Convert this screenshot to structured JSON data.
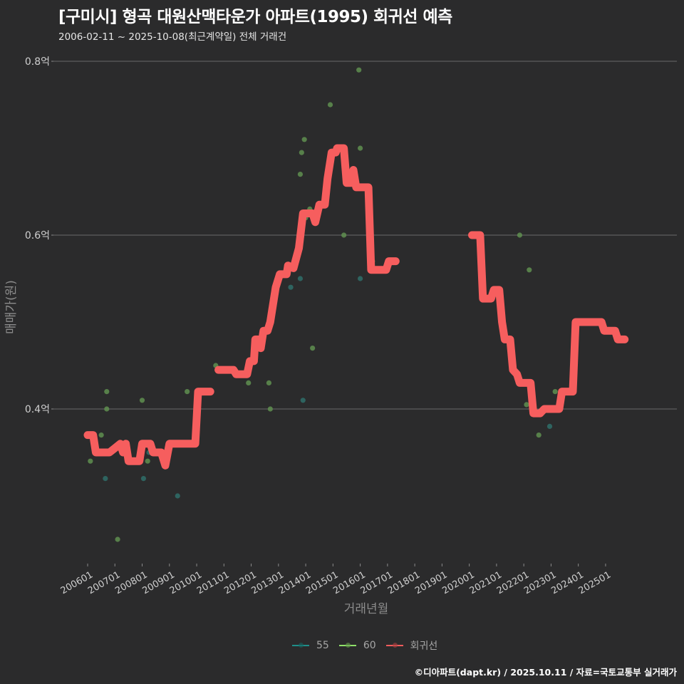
{
  "header": {
    "title": "[구미시] 형곡 대원산맥타운가 아파트(1995) 회귀선 예측",
    "subtitle": "2006-02-11 ~ 2025-10-08(최근계약일) 전체 거래건"
  },
  "caption": "©디아파트(dapt.kr) / 2025.10.11 / 자료=국토교통부 실거래가",
  "legend": {
    "items": [
      {
        "label": "55",
        "color": "#1f8f8a"
      },
      {
        "label": "60",
        "color": "#8fe06a"
      },
      {
        "label": "회귀선",
        "color": "#f25c5c"
      }
    ]
  },
  "colors": {
    "background": "#2b2b2c",
    "grid": "#6a6a6a",
    "series_55": "#2f6e6a",
    "series_60": "#5f8f50",
    "regression": "#f65e5e"
  },
  "chart_data": {
    "type": "scatter",
    "title": "[구미시] 형곡 대원산맥타운가 아파트(1995) 회귀선 예측",
    "subtitle": "2006-02-11 ~ 2025-10-08(최근계약일) 전체 거래건",
    "xlabel": "거래년월",
    "ylabel": "매매가(원)",
    "ylim": [
      0.22,
      0.82
    ],
    "y_ticks": [
      {
        "value": 0.4,
        "label": "0.4억"
      },
      {
        "value": 0.6,
        "label": "0.6억"
      },
      {
        "value": 0.8,
        "label": "0.8억"
      }
    ],
    "x_ticks": [
      "200601",
      "200701",
      "200801",
      "200901",
      "201001",
      "201101",
      "201201",
      "201301",
      "201401",
      "201501",
      "201601",
      "201701",
      "201801",
      "201901",
      "202001",
      "202101",
      "202201",
      "202301",
      "202401",
      "202501"
    ],
    "grid": true,
    "legend_position": "bottom",
    "series": [
      {
        "name": "55",
        "type": "scatter",
        "points": [
          {
            "x": 2006.65,
            "y": 0.32
          },
          {
            "x": 2008.05,
            "y": 0.32
          },
          {
            "x": 2008.25,
            "y": 0.35
          },
          {
            "x": 2009.3,
            "y": 0.3
          },
          {
            "x": 2013.45,
            "y": 0.54
          },
          {
            "x": 2013.8,
            "y": 0.55
          },
          {
            "x": 2013.9,
            "y": 0.41
          },
          {
            "x": 2016.0,
            "y": 0.55
          },
          {
            "x": 2021.6,
            "y": 0.45
          },
          {
            "x": 2022.95,
            "y": 0.38
          }
        ]
      },
      {
        "name": "60",
        "type": "scatter",
        "points": [
          {
            "x": 2006.1,
            "y": 0.34
          },
          {
            "x": 2006.5,
            "y": 0.37
          },
          {
            "x": 2006.7,
            "y": 0.42
          },
          {
            "x": 2006.7,
            "y": 0.4
          },
          {
            "x": 2007.1,
            "y": 0.25
          },
          {
            "x": 2008.0,
            "y": 0.41
          },
          {
            "x": 2008.2,
            "y": 0.34
          },
          {
            "x": 2009.65,
            "y": 0.42
          },
          {
            "x": 2010.7,
            "y": 0.45
          },
          {
            "x": 2011.9,
            "y": 0.43
          },
          {
            "x": 2012.65,
            "y": 0.43
          },
          {
            "x": 2012.7,
            "y": 0.4
          },
          {
            "x": 2013.8,
            "y": 0.67
          },
          {
            "x": 2013.85,
            "y": 0.695
          },
          {
            "x": 2013.95,
            "y": 0.71
          },
          {
            "x": 2014.0,
            "y": 0.62
          },
          {
            "x": 2014.15,
            "y": 0.63
          },
          {
            "x": 2014.25,
            "y": 0.47
          },
          {
            "x": 2014.75,
            "y": 0.66
          },
          {
            "x": 2014.9,
            "y": 0.75
          },
          {
            "x": 2015.4,
            "y": 0.6
          },
          {
            "x": 2016.0,
            "y": 0.7
          },
          {
            "x": 2015.95,
            "y": 0.79
          },
          {
            "x": 2016.45,
            "y": 0.57
          },
          {
            "x": 2021.85,
            "y": 0.6
          },
          {
            "x": 2022.2,
            "y": 0.56
          },
          {
            "x": 2022.55,
            "y": 0.37
          },
          {
            "x": 2022.1,
            "y": 0.405
          },
          {
            "x": 2023.15,
            "y": 0.42
          }
        ]
      },
      {
        "name": "회귀선",
        "type": "line",
        "segments": [
          [
            [
              2006.0,
              0.37
            ],
            [
              2006.2,
              0.37
            ],
            [
              2006.3,
              0.35
            ],
            [
              2006.8,
              0.35
            ],
            [
              2007.0,
              0.355
            ],
            [
              2007.2,
              0.36
            ],
            [
              2007.3,
              0.35
            ],
            [
              2007.4,
              0.36
            ],
            [
              2007.5,
              0.34
            ],
            [
              2007.9,
              0.34
            ],
            [
              2008.0,
              0.36
            ],
            [
              2008.3,
              0.36
            ],
            [
              2008.4,
              0.35
            ],
            [
              2008.7,
              0.35
            ],
            [
              2008.85,
              0.335
            ],
            [
              2009.0,
              0.36
            ],
            [
              2009.95,
              0.36
            ],
            [
              2010.05,
              0.42
            ],
            [
              2010.5,
              0.42
            ]
          ],
          [
            [
              2010.8,
              0.445
            ],
            [
              2011.35,
              0.445
            ],
            [
              2011.45,
              0.44
            ],
            [
              2011.85,
              0.44
            ],
            [
              2011.95,
              0.455
            ],
            [
              2012.1,
              0.455
            ],
            [
              2012.15,
              0.48
            ],
            [
              2012.25,
              0.48
            ],
            [
              2012.35,
              0.47
            ],
            [
              2012.45,
              0.49
            ],
            [
              2012.6,
              0.49
            ],
            [
              2012.7,
              0.5
            ],
            [
              2012.9,
              0.54
            ],
            [
              2013.05,
              0.555
            ],
            [
              2013.3,
              0.555
            ],
            [
              2013.35,
              0.565
            ],
            [
              2013.55,
              0.562
            ],
            [
              2013.75,
              0.585
            ],
            [
              2013.9,
              0.625
            ],
            [
              2014.25,
              0.625
            ],
            [
              2014.35,
              0.615
            ],
            [
              2014.5,
              0.635
            ],
            [
              2014.7,
              0.635
            ],
            [
              2014.8,
              0.665
            ],
            [
              2014.95,
              0.695
            ],
            [
              2015.1,
              0.695
            ],
            [
              2015.15,
              0.7
            ],
            [
              2015.4,
              0.7
            ],
            [
              2015.5,
              0.66
            ],
            [
              2015.7,
              0.66
            ],
            [
              2015.75,
              0.675
            ],
            [
              2015.85,
              0.655
            ],
            [
              2016.3,
              0.655
            ],
            [
              2016.4,
              0.56
            ],
            [
              2016.95,
              0.56
            ],
            [
              2017.05,
              0.57
            ],
            [
              2017.3,
              0.57
            ]
          ],
          [
            [
              2020.1,
              0.6
            ],
            [
              2020.4,
              0.6
            ],
            [
              2020.5,
              0.527
            ],
            [
              2020.8,
              0.527
            ],
            [
              2020.9,
              0.537
            ],
            [
              2021.1,
              0.537
            ],
            [
              2021.2,
              0.5
            ],
            [
              2021.3,
              0.48
            ],
            [
              2021.5,
              0.48
            ],
            [
              2021.6,
              0.445
            ],
            [
              2021.75,
              0.44
            ],
            [
              2021.85,
              0.43
            ],
            [
              2022.25,
              0.43
            ],
            [
              2022.35,
              0.395
            ],
            [
              2022.6,
              0.395
            ],
            [
              2022.75,
              0.4
            ],
            [
              2023.3,
              0.4
            ],
            [
              2023.4,
              0.42
            ],
            [
              2023.8,
              0.42
            ],
            [
              2023.9,
              0.5
            ],
            [
              2024.85,
              0.5
            ],
            [
              2024.95,
              0.49
            ],
            [
              2025.35,
              0.49
            ],
            [
              2025.45,
              0.48
            ],
            [
              2025.7,
              0.48
            ]
          ]
        ]
      }
    ]
  }
}
